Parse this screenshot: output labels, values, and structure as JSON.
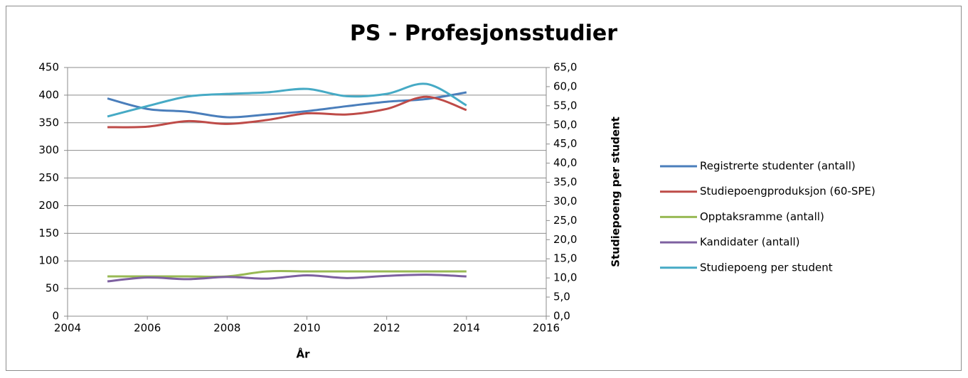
{
  "chart_data": {
    "type": "line",
    "title": "PS - Profesjonsstudier",
    "x_label": "År",
    "y2_label": "Studiepoeng per student",
    "x": [
      2005,
      2006,
      2007,
      2008,
      2009,
      2010,
      2011,
      2012,
      2013,
      2014
    ],
    "xlim": [
      2004,
      2016
    ],
    "xticks": [
      2004,
      2006,
      2008,
      2010,
      2012,
      2014,
      2016
    ],
    "ylim": [
      0,
      450
    ],
    "yticks": [
      0,
      50,
      100,
      150,
      200,
      250,
      300,
      350,
      400,
      450
    ],
    "y2lim": [
      0,
      65
    ],
    "y2ticks": [
      {
        "value": 0,
        "label": "0,0"
      },
      {
        "value": 5,
        "label": "5,0"
      },
      {
        "value": 10,
        "label": "10,0"
      },
      {
        "value": 15,
        "label": "15,0"
      },
      {
        "value": 20,
        "label": "20,0"
      },
      {
        "value": 25,
        "label": "25,0"
      },
      {
        "value": 30,
        "label": "30,0"
      },
      {
        "value": 35,
        "label": "35,0"
      },
      {
        "value": 40,
        "label": "40,0"
      },
      {
        "value": 45,
        "label": "45,0"
      },
      {
        "value": 50,
        "label": "50,0"
      },
      {
        "value": 55,
        "label": "55,0"
      },
      {
        "value": 60,
        "label": "60,0"
      },
      {
        "value": 65,
        "label": "65,0"
      }
    ],
    "grid": true,
    "smooth": true,
    "legend": "right",
    "series": [
      {
        "name": "Registrerte studenter (antall)",
        "color": "#4a7ebb",
        "values": [
          394,
          375,
          370,
          360,
          365,
          371,
          380,
          388,
          393,
          405
        ]
      },
      {
        "name": "Studiepoengproduksjon (60-SPE)",
        "color": "#be4b48",
        "values": [
          342,
          343,
          353,
          348,
          355,
          367,
          365,
          375,
          397,
          373
        ]
      },
      {
        "name": "Opptaksramme (antall)",
        "color": "#98b954",
        "values": [
          72,
          72,
          72,
          72,
          81,
          81,
          81,
          81,
          81,
          81
        ]
      },
      {
        "name": "Kandidater (antall)",
        "color": "#7d60a0",
        "values": [
          63,
          70,
          67,
          71,
          68,
          74,
          69,
          73,
          75,
          72
        ]
      },
      {
        "name": "Studiepoeng per student",
        "color": "#46aac5",
        "axis": "y2",
        "values": [
          52.2,
          54.9,
          57.4,
          58.1,
          58.5,
          59.4,
          57.5,
          58.1,
          60.7,
          55.1
        ]
      }
    ]
  }
}
